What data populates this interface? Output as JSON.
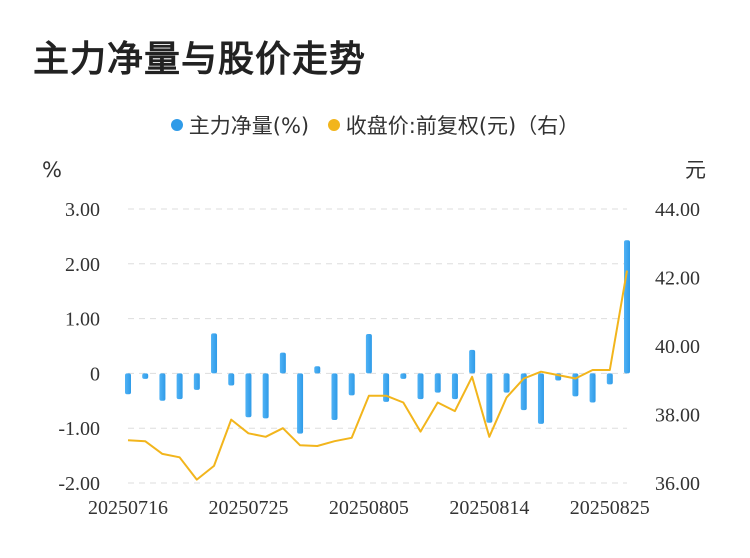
{
  "title": "主力净量与股价走势",
  "colors": {
    "bar": "#2f9be8",
    "line": "#f2b51c",
    "grid": "#dddddd"
  },
  "chart_data": {
    "type": "bar+line",
    "legend": [
      {
        "label": "主力净量(%)",
        "color": "#2f9be8"
      },
      {
        "label": "收盘价:前复权(元)（右）",
        "color": "#f2b51c"
      }
    ],
    "left_unit": "%",
    "right_unit": "元",
    "left_ticks": [
      "3.00",
      "2.00",
      "1.00",
      "0",
      "-1.00",
      "-2.00"
    ],
    "right_ticks": [
      "44.00",
      "42.00",
      "40.00",
      "38.00",
      "36.00"
    ],
    "left_range": [
      -2,
      3
    ],
    "right_range": [
      36,
      44
    ],
    "x_ticks": [
      "20250716",
      "20250725",
      "20250805",
      "20250814",
      "20250825"
    ],
    "x_tick_index": [
      0,
      7,
      14,
      21,
      28
    ],
    "series": [
      {
        "name": "主力净量(%)",
        "type": "bar",
        "axis": "left",
        "values": [
          -0.38,
          -0.1,
          -0.5,
          -0.47,
          -0.3,
          0.73,
          -0.22,
          -0.8,
          -0.82,
          0.38,
          -1.1,
          0.13,
          -0.85,
          -0.4,
          0.72,
          -0.52,
          -0.1,
          -0.47,
          -0.35,
          -0.47,
          0.43,
          -0.9,
          -0.35,
          -0.67,
          -0.92,
          -0.13,
          -0.42,
          -0.53,
          -0.2,
          2.43
        ]
      },
      {
        "name": "收盘价:前复权(元)（右）",
        "type": "line",
        "axis": "right",
        "values": [
          37.25,
          37.22,
          36.85,
          36.75,
          36.1,
          36.5,
          37.85,
          37.45,
          37.35,
          37.6,
          37.1,
          37.08,
          37.22,
          37.32,
          38.55,
          38.55,
          38.35,
          37.5,
          38.35,
          38.1,
          39.1,
          37.35,
          38.5,
          39.05,
          39.25,
          39.15,
          39.05,
          39.3,
          39.3,
          42.2
        ]
      }
    ]
  }
}
